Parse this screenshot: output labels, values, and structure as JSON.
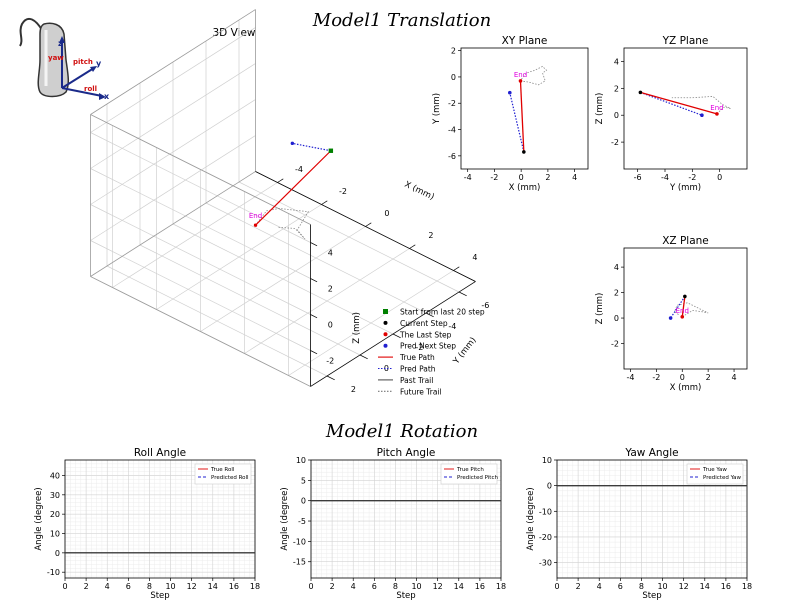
{
  "translation_title": "Model1 Translation",
  "rotation_title": "Model1 Rotation",
  "probe_labels": {
    "z": "z",
    "y": "y",
    "x": "x",
    "yaw": "yaw",
    "pitch": "pitch",
    "roll": "roll"
  },
  "colors": {
    "true_path": "#e00000",
    "pred_path": "#2020d0",
    "end": "#e000e0",
    "start": "#008000",
    "current": "#000000"
  },
  "legend_3d": [
    {
      "label": "Start from last 20 step",
      "kind": "square",
      "color": "#008000"
    },
    {
      "label": "Current Step",
      "kind": "dot",
      "color": "#000000"
    },
    {
      "label": "The Last Step",
      "kind": "dot",
      "color": "#e00000"
    },
    {
      "label": "Pred Next Step",
      "kind": "dot",
      "color": "#2020d0"
    },
    {
      "label": "True Path",
      "kind": "solid",
      "color": "#e00000"
    },
    {
      "label": "Pred Path",
      "kind": "dotted",
      "color": "#2020d0"
    },
    {
      "label": "Past Trail",
      "kind": "solid",
      "color": "#555555"
    },
    {
      "label": "Future Trail",
      "kind": "dotted",
      "color": "#777777"
    }
  ],
  "chart_data": [
    {
      "type": "scatter",
      "title": "3D View",
      "xlabel": "X (mm)",
      "ylabel": "Y (mm)",
      "zlabel": "Z (mm)",
      "xlim": [
        -5,
        5
      ],
      "ylim": [
        -7,
        3
      ],
      "zlim": [
        -4,
        5
      ],
      "xticks": [
        -4,
        -2,
        0,
        2,
        4
      ],
      "yticks": [
        -6,
        -4,
        -2,
        0,
        2
      ],
      "zticks": [
        -2,
        0,
        2,
        4
      ],
      "end_label": "End",
      "points": {
        "start": [
          -0.6,
          -5.7,
          0.6
        ],
        "current": [
          -0.6,
          -5.7,
          0.6
        ],
        "last": [
          0.1,
          -0.2,
          0.1
        ],
        "pred": [
          -1.3,
          -4.3,
          1.4
        ]
      },
      "future_trail": [
        [
          0.1,
          -0.2,
          0.1
        ],
        [
          0.6,
          -0.2,
          1.2
        ],
        [
          1.4,
          0.1,
          2.0
        ],
        [
          2.2,
          -0.6,
          1.9
        ],
        [
          2.0,
          -0.2,
          1.0
        ],
        [
          2.2,
          -0.4,
          0.5
        ],
        [
          1.6,
          -0.6,
          0.6
        ],
        [
          0.9,
          -0.5,
          0.3
        ]
      ]
    },
    {
      "type": "scatter",
      "title": "XY Plane",
      "xlabel": "X (mm)",
      "ylabel": "Y (mm)",
      "xlim": [
        -4.5,
        5
      ],
      "ylim": [
        -7,
        2.2
      ],
      "xticks": [
        -4,
        -2,
        0,
        2,
        4
      ],
      "yticks": [
        -6,
        -4,
        -2,
        0,
        2
      ],
      "end_label": "End",
      "true_path": [
        [
          0.2,
          -5.7
        ],
        [
          -0.05,
          -0.3
        ]
      ],
      "pred_path": [
        [
          0.2,
          -5.7
        ],
        [
          -0.85,
          -1.2
        ]
      ],
      "current": [
        0.2,
        -5.7
      ],
      "last": [
        -0.05,
        -0.3
      ],
      "pred": [
        -0.85,
        -1.2
      ],
      "future_trail": [
        [
          -0.05,
          -0.3
        ],
        [
          0.6,
          -0.4
        ],
        [
          1.3,
          -0.6
        ],
        [
          1.8,
          -0.3
        ],
        [
          1.6,
          0.3
        ],
        [
          1.9,
          0.5
        ],
        [
          1.6,
          0.8
        ],
        [
          1.0,
          0.5
        ],
        [
          0.4,
          0.3
        ],
        [
          0.0,
          -0.2
        ]
      ]
    },
    {
      "type": "scatter",
      "title": "YZ Plane",
      "xlabel": "Y (mm)",
      "ylabel": "Z (mm)",
      "xlim": [
        -7,
        2
      ],
      "ylim": [
        -4,
        5
      ],
      "xticks": [
        -6,
        -4,
        -2,
        0
      ],
      "yticks": [
        -2,
        0,
        2,
        4
      ],
      "end_label": "End",
      "true_path": [
        [
          -5.8,
          1.7
        ],
        [
          -0.2,
          0.1
        ]
      ],
      "pred_path": [
        [
          -5.8,
          1.7
        ],
        [
          -1.3,
          0.0
        ]
      ],
      "current": [
        -5.8,
        1.7
      ],
      "last": [
        -0.2,
        0.1
      ],
      "pred": [
        -1.3,
        0.0
      ],
      "future_trail": [
        [
          -0.2,
          0.1
        ],
        [
          0.3,
          0.6
        ],
        [
          0.8,
          0.5
        ],
        [
          0.2,
          0.8
        ],
        [
          -0.5,
          1.4
        ],
        [
          -2.0,
          1.3
        ],
        [
          -3.5,
          1.3
        ]
      ]
    },
    {
      "type": "scatter",
      "title": "XZ Plane",
      "xlabel": "X (mm)",
      "ylabel": "Z (mm)",
      "xlim": [
        -4.5,
        5
      ],
      "ylim": [
        -4,
        5.5
      ],
      "xticks": [
        -4,
        -2,
        0,
        2,
        4
      ],
      "yticks": [
        -2,
        0,
        2,
        4
      ],
      "end_label": "End",
      "true_path": [
        [
          0.2,
          1.7
        ],
        [
          0.0,
          0.1
        ]
      ],
      "pred_path": [
        [
          0.2,
          1.7
        ],
        [
          -0.9,
          0.0
        ]
      ],
      "current": [
        0.2,
        1.7
      ],
      "last": [
        0.0,
        0.1
      ],
      "pred": [
        -0.9,
        0.0
      ],
      "future_trail": [
        [
          0.0,
          0.1
        ],
        [
          0.8,
          0.6
        ],
        [
          1.5,
          0.5
        ],
        [
          2.0,
          0.4
        ],
        [
          1.0,
          0.9
        ],
        [
          0.4,
          1.2
        ],
        [
          -0.4,
          1.0
        ],
        [
          -0.6,
          0.5
        ],
        [
          -0.2,
          0.2
        ]
      ]
    },
    {
      "type": "line",
      "title": "Roll Angle",
      "xlabel": "Step",
      "ylabel": "Angle (degree)",
      "xlim": [
        0,
        18
      ],
      "ylim": [
        -13,
        48
      ],
      "xticks": [
        0,
        2,
        4,
        6,
        8,
        10,
        12,
        14,
        16,
        18
      ],
      "yticks": [
        -10,
        0,
        10,
        20,
        30,
        40
      ],
      "legend_position": "top-right",
      "series": [
        {
          "name": "True Roll",
          "x": [
            0,
            18
          ],
          "values": [
            0,
            0
          ]
        },
        {
          "name": "Predicted Roll",
          "x": [
            0,
            18
          ],
          "values": [
            0,
            0
          ]
        }
      ]
    },
    {
      "type": "line",
      "title": "Pitch Angle",
      "xlabel": "Step",
      "ylabel": "Angle (degree)",
      "xlim": [
        0,
        18
      ],
      "ylim": [
        -19,
        10
      ],
      "xticks": [
        0,
        2,
        4,
        6,
        8,
        10,
        12,
        14,
        16,
        18
      ],
      "yticks": [
        -15,
        -10,
        -5,
        0,
        5,
        10
      ],
      "legend_position": "top-right",
      "series": [
        {
          "name": "True Pitch",
          "x": [
            0,
            18
          ],
          "values": [
            0,
            0
          ]
        },
        {
          "name": "Predicted Pitch",
          "x": [
            0,
            18
          ],
          "values": [
            0,
            0
          ]
        }
      ]
    },
    {
      "type": "line",
      "title": "Yaw Angle",
      "xlabel": "Step",
      "ylabel": "Angle (degree)",
      "xlim": [
        0,
        18
      ],
      "ylim": [
        -36,
        10
      ],
      "xticks": [
        0,
        2,
        4,
        6,
        8,
        10,
        12,
        14,
        16,
        18
      ],
      "yticks": [
        -30,
        -20,
        -10,
        0,
        10
      ],
      "legend_position": "top-right",
      "series": [
        {
          "name": "True Yaw",
          "x": [
            0,
            18
          ],
          "values": [
            0,
            0
          ]
        },
        {
          "name": "Predicted Yaw",
          "x": [
            0,
            18
          ],
          "values": [
            0,
            0
          ]
        }
      ]
    }
  ]
}
